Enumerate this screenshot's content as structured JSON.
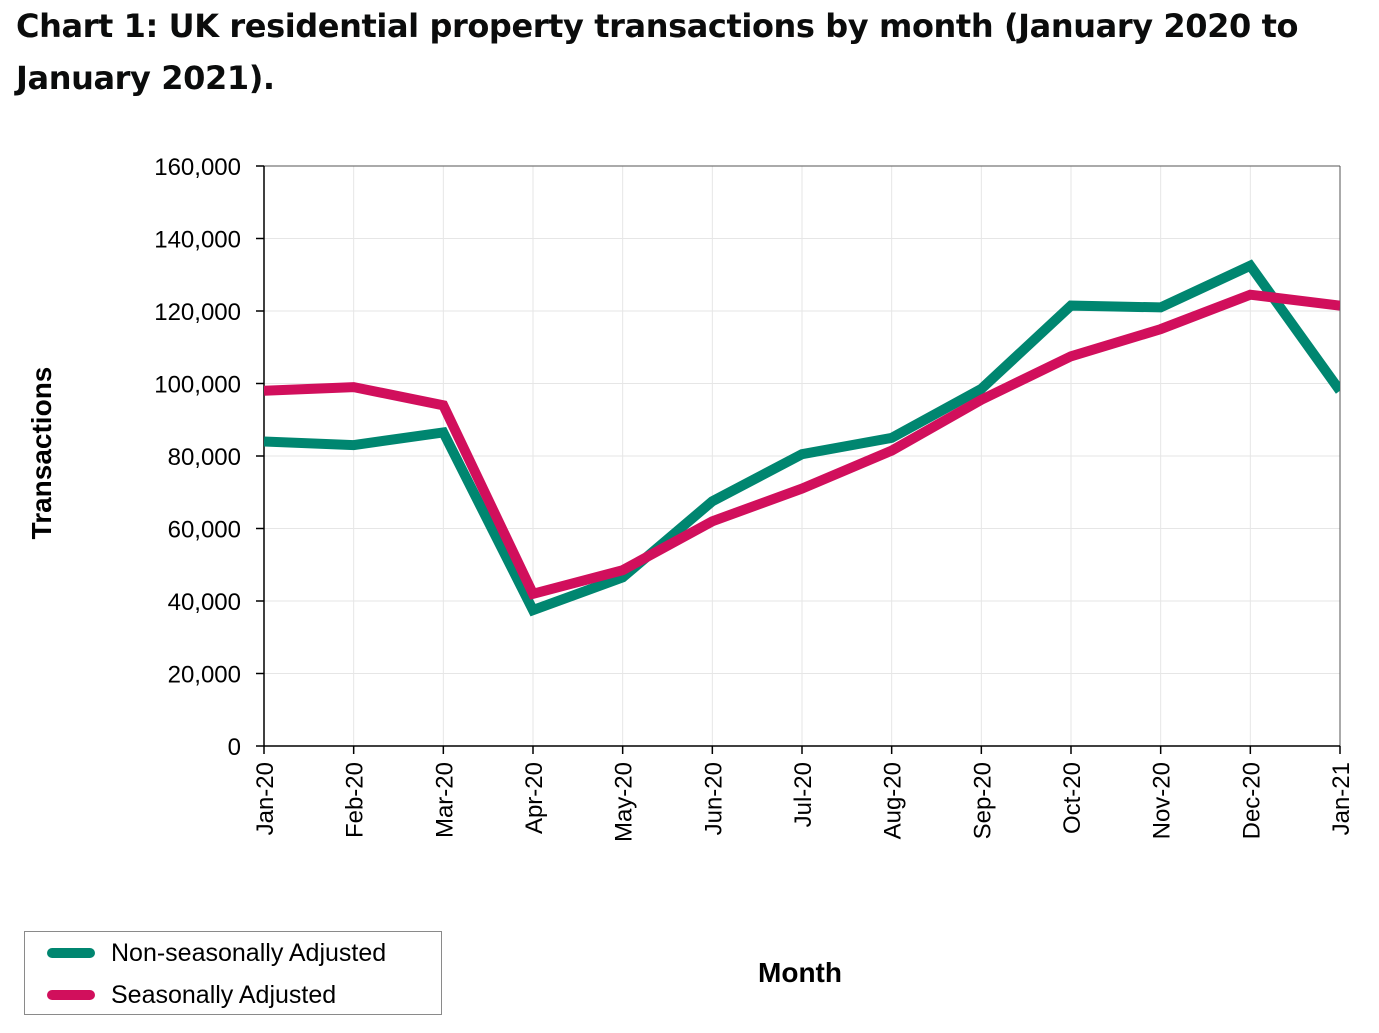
{
  "title": "Chart 1: UK residential property transactions by month (January 2020 to January 2021).",
  "colors": {
    "non_seasonal": "#008670",
    "seasonal": "#d10f5c",
    "grid": "#e6e6e6",
    "axis": "#000000"
  },
  "chart_data": {
    "type": "line",
    "title": "Chart 1: UK residential property transactions by month (January 2020 to January 2021).",
    "xlabel": "Month",
    "ylabel": "Transactions",
    "ylim": [
      0,
      160000
    ],
    "yticks": [
      0,
      20000,
      40000,
      60000,
      80000,
      100000,
      120000,
      140000,
      160000
    ],
    "ytick_labels": [
      "0",
      "20,000",
      "40,000",
      "60,000",
      "80,000",
      "100,000",
      "120,000",
      "140,000",
      "160,000"
    ],
    "categories": [
      "Jan-20",
      "Feb-20",
      "Mar-20",
      "Apr-20",
      "May-20",
      "Jun-20",
      "Jul-20",
      "Aug-20",
      "Sep-20",
      "Oct-20",
      "Nov-20",
      "Dec-20",
      "Jan-21"
    ],
    "grid": true,
    "legend_position": "bottom-left",
    "series": [
      {
        "name": "Non-seasonally Adjusted",
        "color": "#008670",
        "values": [
          84000,
          83000,
          86500,
          37500,
          46500,
          67500,
          80500,
          85000,
          98500,
          121500,
          121000,
          132500,
          98000
        ]
      },
      {
        "name": "Seasonally Adjusted",
        "color": "#d10f5c",
        "values": [
          98000,
          99000,
          94000,
          42000,
          48500,
          62000,
          71000,
          81500,
          95500,
          107500,
          115000,
          124500,
          121500
        ]
      }
    ]
  }
}
